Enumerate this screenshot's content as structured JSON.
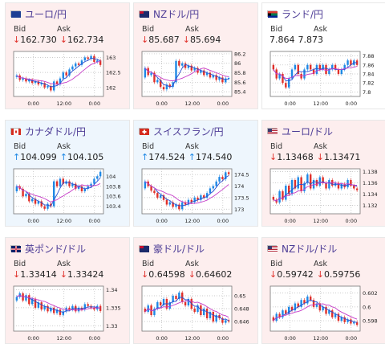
{
  "labels": {
    "bid": "Bid",
    "ask": "Ask"
  },
  "time_ticks": [
    "0:00",
    "12:00",
    "0:00"
  ],
  "colors": {
    "up": "#1e88e5",
    "down": "#e0302a",
    "title": "#4d3c96",
    "ma_fast": "#2a4fd0",
    "ma_slow": "#c63cc8"
  },
  "cards": [
    {
      "title": "ユーロ/円",
      "flag": "eu-flag-icon",
      "dir": "down",
      "bid": "162.730",
      "ask": "162.734",
      "bid_arrow": "down",
      "ask_arrow": "down",
      "yticks": [
        "163",
        "162.5",
        "162"
      ],
      "ylim": [
        161.7,
        163.2
      ],
      "open": 162.35,
      "closes": [
        162.4,
        162.25,
        162.3,
        162.2,
        162.25,
        162.15,
        162.2,
        162.1,
        162.15,
        162.0,
        162.05,
        161.9,
        162.2,
        162.1,
        162.3,
        162.5,
        162.4,
        162.6,
        162.7,
        162.8,
        162.75,
        162.9,
        163.0,
        162.95,
        163.05,
        162.85,
        162.9,
        162.75
      ]
    },
    {
      "title": "NZドル/円",
      "flag": "nz-flag-icon",
      "dir": "down",
      "bid": "85.687",
      "ask": "85.694",
      "bid_arrow": "down",
      "ask_arrow": "down",
      "yticks": [
        "86.2",
        "86",
        "85.8",
        "85.6",
        "85.4"
      ],
      "ylim": [
        85.3,
        86.25
      ],
      "open": 85.7,
      "closes": [
        85.9,
        85.75,
        85.8,
        85.6,
        85.65,
        85.5,
        85.45,
        85.55,
        85.5,
        85.6,
        86.05,
        85.95,
        86.0,
        85.9,
        85.95,
        85.85,
        85.9,
        85.8,
        85.85,
        85.75,
        85.8,
        85.7,
        85.75,
        85.65,
        85.7,
        85.6,
        85.68,
        85.69
      ]
    },
    {
      "title": "ランド/円",
      "flag": "za-flag-icon",
      "dir": "flat",
      "bid": "7.864",
      "ask": "7.873",
      "bid_arrow": "",
      "ask_arrow": "",
      "yticks": [
        "7.88",
        "7.86",
        "7.84",
        "7.82",
        "7.8"
      ],
      "ylim": [
        7.79,
        7.89
      ],
      "open": 7.86,
      "closes": [
        7.85,
        7.83,
        7.84,
        7.82,
        7.81,
        7.83,
        7.85,
        7.86,
        7.84,
        7.83,
        7.85,
        7.86,
        7.85,
        7.84,
        7.86,
        7.85,
        7.86,
        7.84,
        7.85,
        7.86,
        7.85,
        7.84,
        7.85,
        7.86,
        7.87,
        7.86,
        7.87,
        7.86
      ]
    },
    {
      "title": "カナダドル/円",
      "flag": "ca-flag-icon",
      "dir": "up",
      "bid": "104.099",
      "ask": "104.105",
      "bid_arrow": "up",
      "ask_arrow": "up",
      "yticks": [
        "104",
        "103.8",
        "103.6",
        "103.4"
      ],
      "ylim": [
        103.25,
        104.15
      ],
      "open": 103.7,
      "closes": [
        103.8,
        103.75,
        103.6,
        103.65,
        103.5,
        103.55,
        103.45,
        103.5,
        103.4,
        103.35,
        103.45,
        103.4,
        103.9,
        103.8,
        103.95,
        103.85,
        103.9,
        103.8,
        103.85,
        103.75,
        103.8,
        103.7,
        103.75,
        103.8,
        103.85,
        103.95,
        104.0,
        104.09
      ]
    },
    {
      "title": "スイスフラン/円",
      "flag": "ch-flag-icon",
      "dir": "up",
      "bid": "174.524",
      "ask": "174.540",
      "bid_arrow": "up",
      "ask_arrow": "up",
      "yticks": [
        "174.5",
        "174",
        "173.5",
        "173"
      ],
      "ylim": [
        172.8,
        174.75
      ],
      "open": 173.9,
      "closes": [
        174.2,
        174.0,
        173.8,
        173.7,
        173.5,
        173.6,
        173.4,
        173.2,
        173.3,
        173.1,
        173.2,
        173.0,
        173.3,
        173.2,
        173.4,
        173.3,
        173.5,
        173.4,
        173.6,
        173.5,
        173.7,
        173.9,
        174.0,
        174.2,
        174.4,
        174.3,
        174.6,
        174.52
      ]
    },
    {
      "title": "ユーロ/ドル",
      "flag": "us-flag-icon",
      "dir": "down",
      "bid": "1.13468",
      "ask": "1.13471",
      "bid_arrow": "down",
      "ask_arrow": "down",
      "yticks": [
        "1.138",
        "1.136",
        "1.134",
        "1.132"
      ],
      "ylim": [
        1.1305,
        1.1385
      ],
      "open": 1.1335,
      "closes": [
        1.133,
        1.1325,
        1.1345,
        1.133,
        1.1355,
        1.134,
        1.1365,
        1.135,
        1.137,
        1.1345,
        1.136,
        1.1375,
        1.135,
        1.1365,
        1.1355,
        1.137,
        1.136,
        1.135,
        1.1365,
        1.1355,
        1.136,
        1.135,
        1.1358,
        1.1352,
        1.1365,
        1.1355,
        1.135,
        1.1347
      ]
    },
    {
      "title": "英ポンド/ドル",
      "flag": "uk-flag-icon",
      "dir": "down",
      "bid": "1.33414",
      "ask": "1.33424",
      "bid_arrow": "down",
      "ask_arrow": "down",
      "yticks": [
        "1.34",
        "1.335",
        "1.33"
      ],
      "ylim": [
        1.3285,
        1.341
      ],
      "open": 1.337,
      "closes": [
        1.338,
        1.339,
        1.337,
        1.3385,
        1.336,
        1.3375,
        1.335,
        1.3365,
        1.3345,
        1.3355,
        1.334,
        1.335,
        1.3335,
        1.3345,
        1.333,
        1.334,
        1.335,
        1.3345,
        1.3355,
        1.334,
        1.335,
        1.3345,
        1.336,
        1.3355,
        1.335,
        1.3345,
        1.3355,
        1.3341
      ]
    },
    {
      "title": "豪ドル/ドル",
      "flag": "au-flag-icon",
      "dir": "down",
      "bid": "0.64598",
      "ask": "0.64602",
      "bid_arrow": "down",
      "ask_arrow": "down",
      "yticks": [
        "0.65",
        "0.648",
        "0.646"
      ],
      "ylim": [
        0.6445,
        0.6515
      ],
      "open": 0.648,
      "closes": [
        0.6475,
        0.6485,
        0.647,
        0.648,
        0.649,
        0.6485,
        0.6495,
        0.648,
        0.649,
        0.65,
        0.6495,
        0.6505,
        0.649,
        0.6485,
        0.6495,
        0.648,
        0.6475,
        0.6485,
        0.647,
        0.648,
        0.6465,
        0.6475,
        0.646,
        0.647,
        0.6465,
        0.6458,
        0.6462,
        0.646
      ]
    },
    {
      "title": "NZドル/ドル",
      "flag": "us-flag-icon",
      "dir": "down",
      "bid": "0.59742",
      "ask": "0.59756",
      "bid_arrow": "down",
      "ask_arrow": "down",
      "yticks": [
        "0.602",
        "0.6",
        "0.598"
      ],
      "ylim": [
        0.5965,
        0.603
      ],
      "open": 0.5985,
      "closes": [
        0.598,
        0.599,
        0.5985,
        0.5995,
        0.599,
        0.6,
        0.5995,
        0.6005,
        0.6,
        0.601,
        0.6005,
        0.6015,
        0.601,
        0.6,
        0.6005,
        0.5995,
        0.6,
        0.599,
        0.5995,
        0.5985,
        0.599,
        0.598,
        0.5985,
        0.5978,
        0.5982,
        0.5976,
        0.5978,
        0.5974
      ]
    }
  ]
}
